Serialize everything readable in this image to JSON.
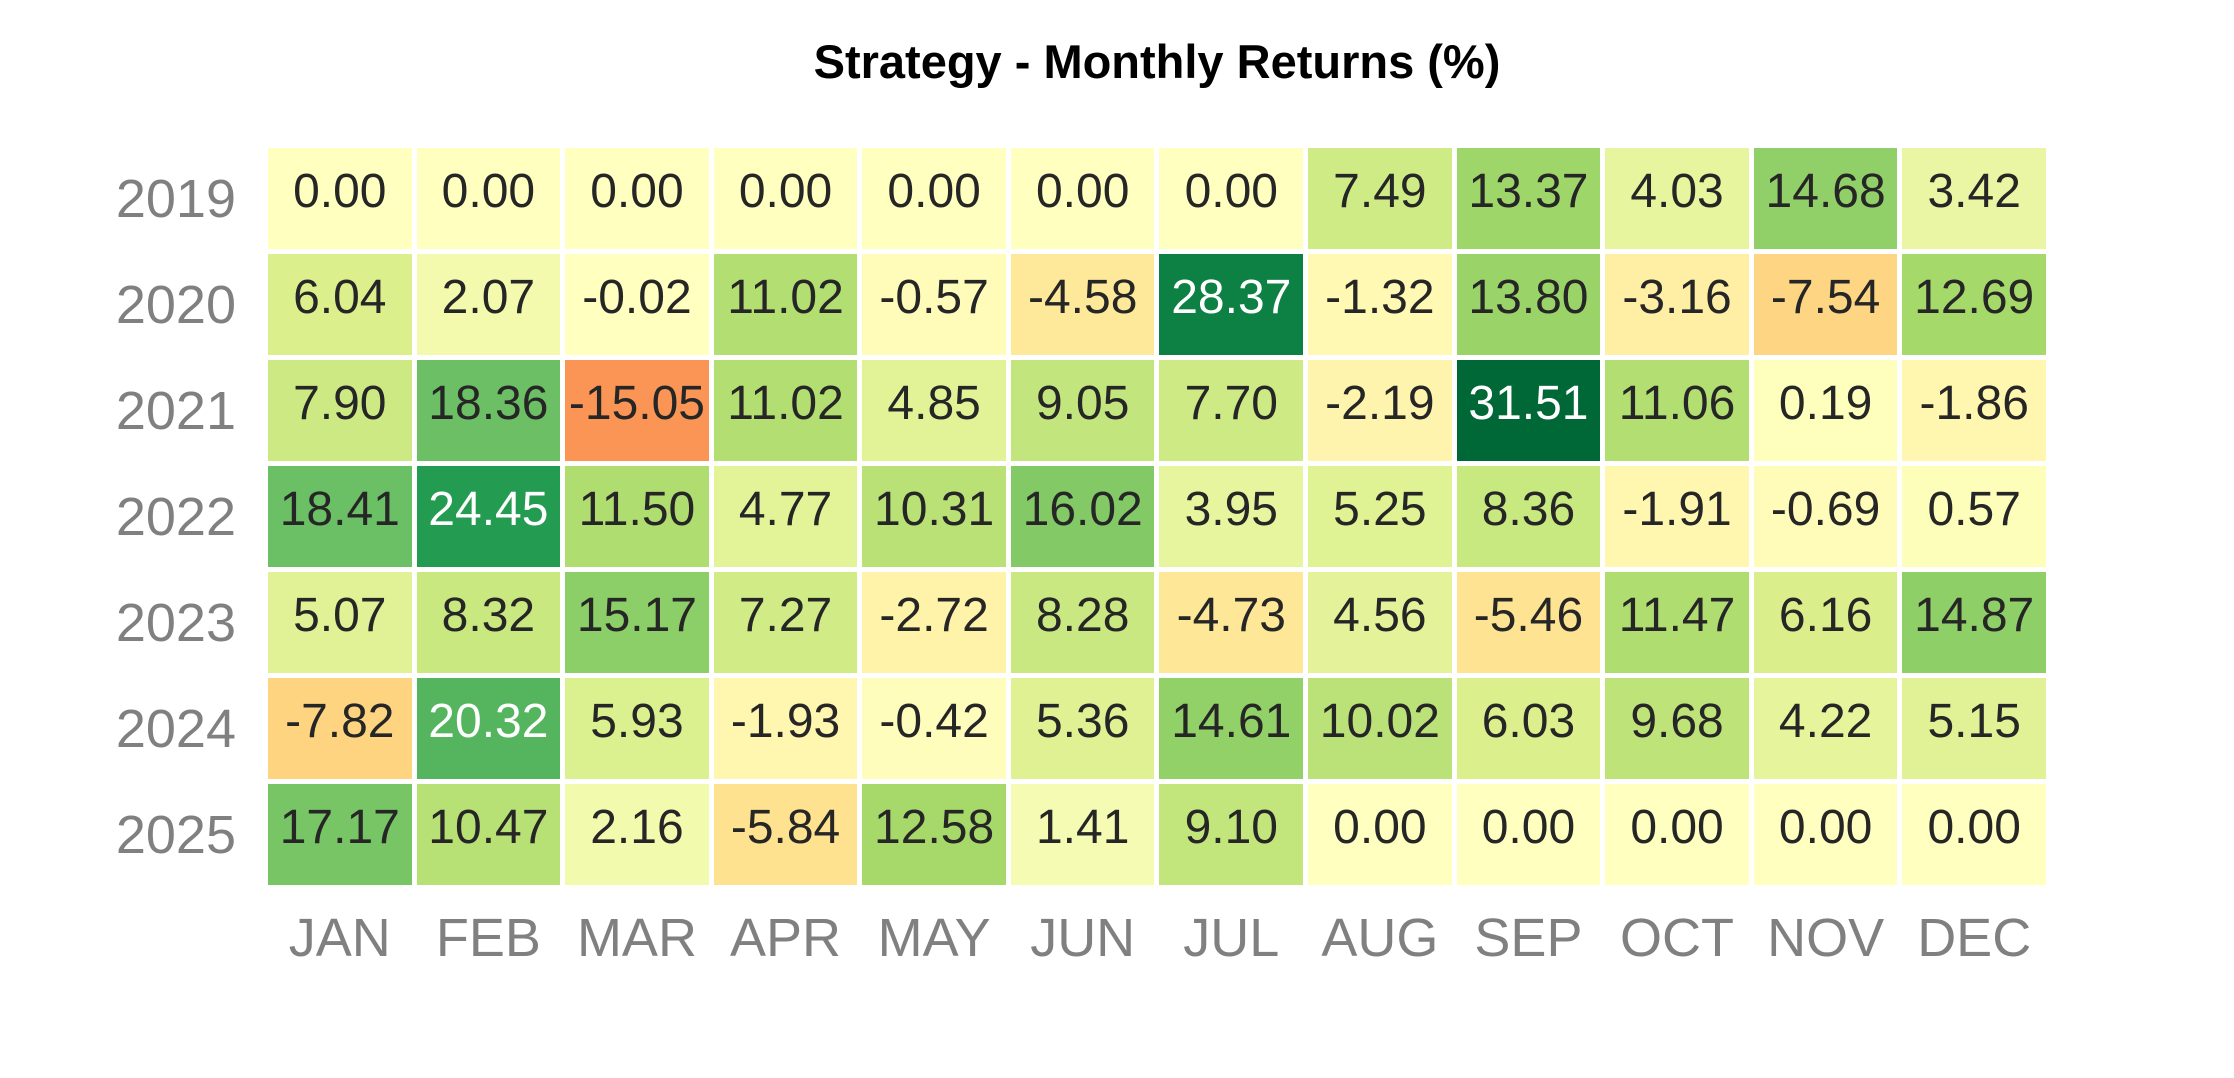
{
  "title": "Strategy - Monthly Returns (%)",
  "chart_data": {
    "type": "heatmap",
    "title": "Strategy - Monthly Returns (%)",
    "x_categories": [
      "JAN",
      "FEB",
      "MAR",
      "APR",
      "MAY",
      "JUN",
      "JUL",
      "AUG",
      "SEP",
      "OCT",
      "NOV",
      "DEC"
    ],
    "y_categories": [
      "2019",
      "2020",
      "2021",
      "2022",
      "2023",
      "2024",
      "2025"
    ],
    "values": [
      [
        0.0,
        0.0,
        0.0,
        0.0,
        0.0,
        0.0,
        0.0,
        7.49,
        13.37,
        4.03,
        14.68,
        3.42
      ],
      [
        6.04,
        2.07,
        -0.02,
        11.02,
        -0.57,
        -4.58,
        28.37,
        -1.32,
        13.8,
        -3.16,
        -7.54,
        12.69
      ],
      [
        7.9,
        18.36,
        -15.05,
        11.02,
        4.85,
        9.05,
        7.7,
        -2.19,
        31.51,
        11.06,
        0.19,
        -1.86
      ],
      [
        18.41,
        24.45,
        11.5,
        4.77,
        10.31,
        16.02,
        3.95,
        5.25,
        8.36,
        -1.91,
        -0.69,
        0.57
      ],
      [
        5.07,
        8.32,
        15.17,
        7.27,
        -2.72,
        8.28,
        -4.73,
        4.56,
        -5.46,
        11.47,
        6.16,
        14.87
      ],
      [
        -7.82,
        20.32,
        5.93,
        -1.93,
        -0.42,
        5.36,
        14.61,
        10.02,
        6.03,
        9.68,
        4.22,
        5.15
      ],
      [
        17.17,
        10.47,
        2.16,
        -5.84,
        12.58,
        1.41,
        9.1,
        0.0,
        0.0,
        0.0,
        0.0,
        0.0
      ]
    ],
    "value_decimals": 2,
    "colormap": {
      "name": "RdYlGn",
      "vmin": -31.51,
      "vmax": 31.51,
      "stops": [
        "#a50026",
        "#d73027",
        "#f46d43",
        "#fdae61",
        "#fee08b",
        "#ffffbf",
        "#d9ef8b",
        "#a6d96a",
        "#66bd63",
        "#1a9850",
        "#006837"
      ]
    },
    "legend": "none",
    "grid_gap_color": "#ffffff"
  },
  "colors": {
    "background": "#ffffff",
    "title_text": "#000000",
    "axis_label_text": "#808080",
    "cell_text_dark": "#262626",
    "cell_text_light": "#ffffff",
    "luminance_threshold": 0.408
  }
}
